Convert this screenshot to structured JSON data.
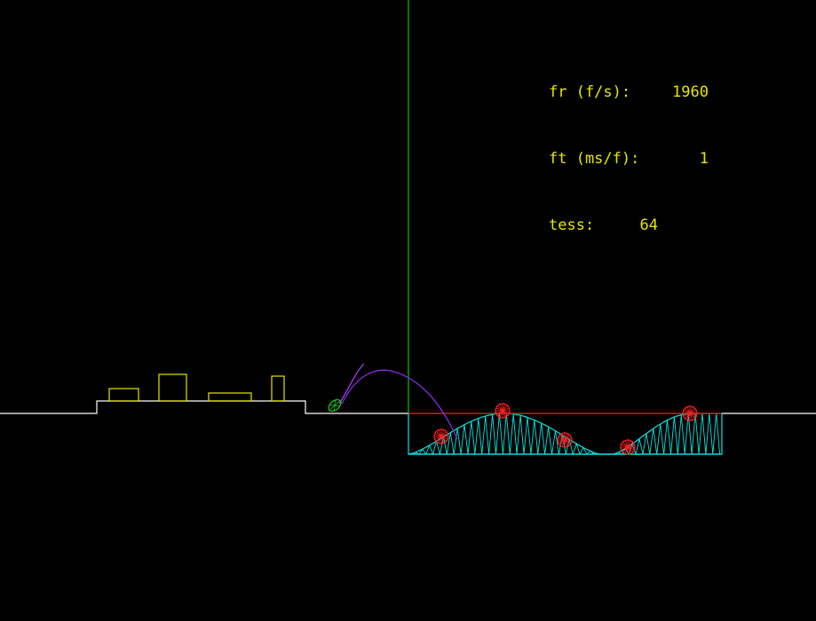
{
  "hud": {
    "framerate": {
      "label": "fr (f/s):",
      "value": "1960"
    },
    "frametime": {
      "label": "ft (ms/f):",
      "value": "1"
    },
    "tessellation": {
      "label": "tess:",
      "value": "64"
    }
  },
  "colors": {
    "background": "#000000",
    "text": "#e6e600",
    "ground": "#ffffff",
    "obstacles": "#e6e600",
    "divider": "#00cc00",
    "water_mesh": "#00e5e5",
    "water_surface": "#cc0000",
    "wheels": "#ff2020",
    "trajectory": "#8a2be2",
    "projectile": "#22cc22"
  },
  "scene": {
    "wave_tessellation": 64,
    "wheel_count": 5,
    "obstacle_count": 4
  }
}
